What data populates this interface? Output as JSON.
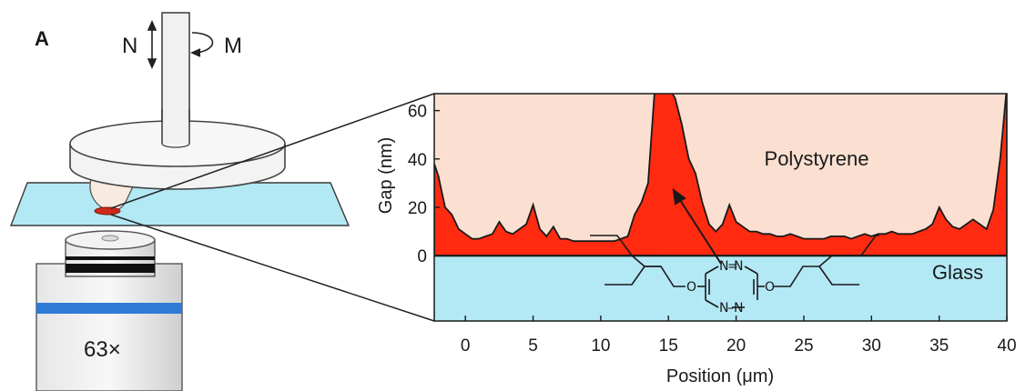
{
  "panel_label": "A",
  "apparatus": {
    "normal_force_label": "N",
    "torque_label": "M",
    "objective_label": "63×"
  },
  "molecule": {
    "atoms": [
      "N",
      "N",
      "N",
      "N",
      "O",
      "O"
    ]
  },
  "colors": {
    "polystyrene_fill": "#fbe0d2",
    "gap_fill": "#ff2a10",
    "glass_fill": "#b3e8f5",
    "glass_slide": "#b3e8f5",
    "objective_band": "#2f7ad6"
  },
  "chart_data": {
    "type": "area",
    "title": "",
    "xlabel": "Position (μm)",
    "ylabel": "Gap (nm)",
    "xlim": [
      -2.3,
      40
    ],
    "ylim": [
      -27,
      67
    ],
    "xticks": [
      0,
      5,
      10,
      15,
      20,
      25,
      30,
      35,
      40
    ],
    "yticks": [
      0,
      20,
      40,
      60
    ],
    "region_labels": [
      "Polystyrene",
      "Glass"
    ],
    "series": [
      {
        "x": [
          -2.3,
          -2,
          -1.5,
          -1,
          -0.5,
          0,
          0.5,
          1,
          1.5,
          2,
          2.5,
          3,
          3.5,
          4,
          4.5,
          5,
          5.5,
          6,
          6.5,
          7,
          7.5,
          8,
          8.5,
          9,
          9.5,
          10,
          10.5,
          11,
          11.5,
          12,
          12.5,
          13,
          13.5,
          14,
          14.5,
          15,
          15.5,
          16,
          16.5,
          17,
          17.5,
          18,
          18.5,
          19,
          19.5,
          20,
          20.5,
          21,
          21.5,
          22,
          22.5,
          23,
          23.5,
          24,
          24.5,
          25,
          25.5,
          26,
          26.5,
          27,
          27.5,
          28,
          28.5,
          29,
          29.5,
          30,
          30.5,
          31,
          31.5,
          32,
          32.5,
          33,
          33.5,
          34,
          34.5,
          35,
          35.5,
          36,
          36.5,
          37,
          37.5,
          38,
          38.5,
          39,
          39.5,
          40
        ],
        "y": [
          38,
          33,
          20,
          17,
          11,
          9,
          7,
          7,
          8,
          9,
          14,
          10,
          9,
          11,
          13,
          21,
          11,
          8,
          12,
          7,
          7,
          6,
          6,
          6,
          6,
          6,
          6,
          6,
          7,
          8,
          17,
          22,
          30,
          70,
          70,
          70,
          65,
          54,
          40,
          34,
          22,
          13,
          10,
          13,
          21,
          14,
          12,
          10,
          10,
          9,
          9,
          8,
          8,
          9,
          8,
          7,
          7,
          7,
          7,
          8,
          8,
          8,
          7,
          8,
          9,
          8,
          9,
          9,
          10,
          9,
          9,
          9,
          10,
          11,
          13,
          20,
          15,
          12,
          11,
          13,
          15,
          13,
          11,
          19,
          40,
          70
        ]
      }
    ]
  }
}
